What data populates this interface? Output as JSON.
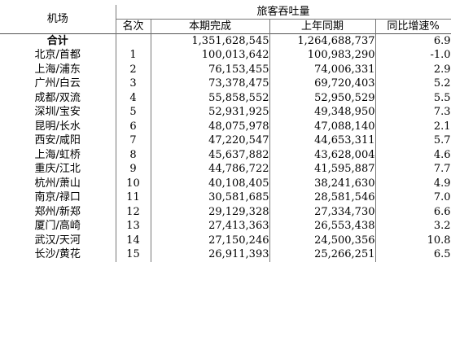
{
  "header": {
    "airport": "机场",
    "group": "旅客吞吐量",
    "rank": "名次",
    "current": "本期完成",
    "last_year": "上年同期",
    "growth": "同比增速%",
    "cut_off": "本"
  },
  "total": {
    "name": "合计",
    "current": "1,351,628,545",
    "last_year": "1,264,688,737",
    "growth": "6.9"
  },
  "rows": [
    {
      "name": "北京/首都",
      "rank": "1",
      "current": "100,013,642",
      "last_year": "100,983,290",
      "growth": "-1.0"
    },
    {
      "name": "上海/浦东",
      "rank": "2",
      "current": "76,153,455",
      "last_year": "74,006,331",
      "growth": "2.9"
    },
    {
      "name": "广州/白云",
      "rank": "3",
      "current": "73,378,475",
      "last_year": "69,720,403",
      "growth": "5.2"
    },
    {
      "name": "成都/双流",
      "rank": "4",
      "current": "55,858,552",
      "last_year": "52,950,529",
      "growth": "5.5"
    },
    {
      "name": "深圳/宝安",
      "rank": "5",
      "current": "52,931,925",
      "last_year": "49,348,950",
      "growth": "7.3"
    },
    {
      "name": "昆明/长水",
      "rank": "6",
      "current": "48,075,978",
      "last_year": "47,088,140",
      "growth": "2.1"
    },
    {
      "name": "西安/咸阳",
      "rank": "7",
      "current": "47,220,547",
      "last_year": "44,653,311",
      "growth": "5.7"
    },
    {
      "name": "上海/虹桥",
      "rank": "8",
      "current": "45,637,882",
      "last_year": "43,628,004",
      "growth": "4.6"
    },
    {
      "name": "重庆/江北",
      "rank": "9",
      "current": "44,786,722",
      "last_year": "41,595,887",
      "growth": "7.7"
    },
    {
      "name": "杭州/萧山",
      "rank": "10",
      "current": "40,108,405",
      "last_year": "38,241,630",
      "growth": "4.9"
    },
    {
      "name": "南京/禄口",
      "rank": "11",
      "current": "30,581,685",
      "last_year": "28,581,546",
      "growth": "7.0"
    },
    {
      "name": "郑州/新郑",
      "rank": "12",
      "current": "29,129,328",
      "last_year": "27,334,730",
      "growth": "6.6"
    },
    {
      "name": "厦门/高崎",
      "rank": "13",
      "current": "27,413,363",
      "last_year": "26,553,438",
      "growth": "3.2"
    },
    {
      "name": "武汉/天河",
      "rank": "14",
      "current": "27,150,246",
      "last_year": "24,500,356",
      "growth": "10.8"
    },
    {
      "name": "长沙/黄花",
      "rank": "15",
      "current": "26,911,393",
      "last_year": "25,266,251",
      "growth": "6.5"
    }
  ]
}
